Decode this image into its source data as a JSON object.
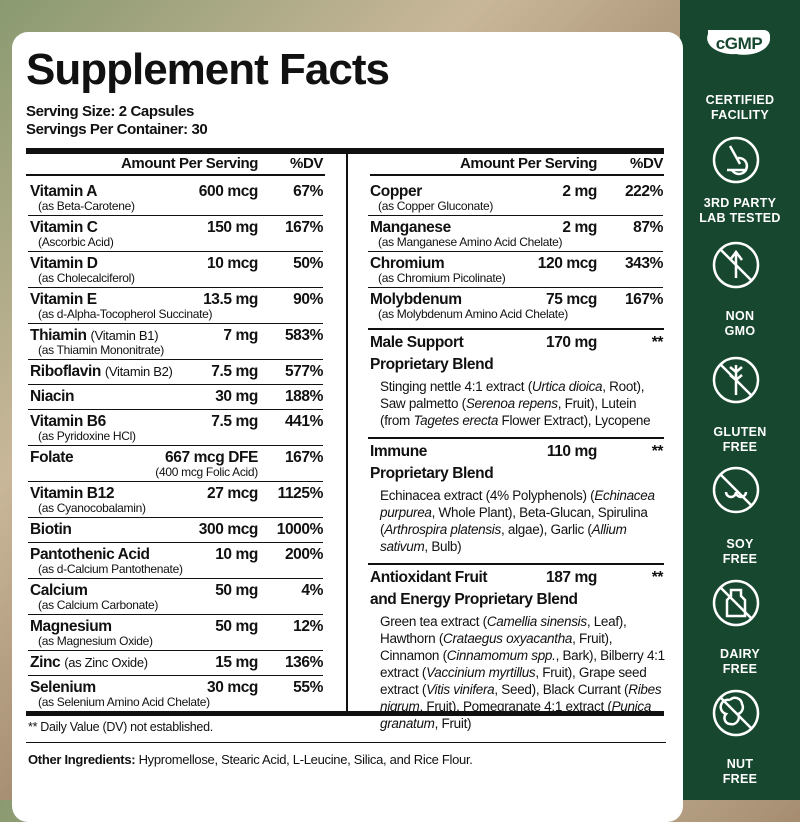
{
  "title": "Supplement Facts",
  "serving_size": "Serving Size: 2 Capsules",
  "servings_per_container": "Servings Per Container: 30",
  "table": {
    "header_amount": "Amount Per Serving",
    "header_dv": "%DV",
    "left_rows": [
      {
        "name": "Vitamin A",
        "sub": "(as Beta-Carotene)",
        "amount": "600 mcg",
        "dv": "67%"
      },
      {
        "name": "Vitamin C",
        "sub": "(Ascorbic Acid)",
        "amount": "150 mg",
        "dv": "167%"
      },
      {
        "name": "Vitamin D",
        "sub": "(as Cholecalciferol)",
        "amount": "10 mcg",
        "dv": "50%"
      },
      {
        "name": "Vitamin E",
        "sub": "(as d-Alpha-Tocopherol Succinate)",
        "amount": "13.5 mg",
        "dv": "90%"
      },
      {
        "name": "Thiamin",
        "note": "(Vitamin B1)",
        "sub": "(as Thiamin Mononitrate)",
        "amount": "7 mg",
        "dv": "583%"
      },
      {
        "name": "Riboflavin",
        "note": "(Vitamin B2)",
        "amount": "7.5 mg",
        "dv": "577%"
      },
      {
        "name": "Niacin",
        "amount": "30 mg",
        "dv": "188%"
      },
      {
        "name": "Vitamin B6",
        "sub": "(as Pyridoxine HCl)",
        "amount": "7.5 mg",
        "dv": "441%"
      },
      {
        "name": "Folate",
        "amount": "667 mcg DFE",
        "amount_sub": "(400 mcg Folic Acid)",
        "dv": "167%"
      },
      {
        "name": "Vitamin B12",
        "sub": "(as Cyanocobalamin)",
        "amount": "27 mcg",
        "dv": "1125%"
      },
      {
        "name": "Biotin",
        "amount": "300 mcg",
        "dv": "1000%"
      },
      {
        "name": "Pantothenic Acid",
        "sub": "(as d-Calcium Pantothenate)",
        "amount": "10 mg",
        "dv": "200%"
      },
      {
        "name": "Calcium",
        "sub": "(as Calcium Carbonate)",
        "amount": "50 mg",
        "dv": "4%"
      },
      {
        "name": "Magnesium",
        "sub": "(as Magnesium Oxide)",
        "amount": "50 mg",
        "dv": "12%"
      },
      {
        "name": "Zinc",
        "note": "(as Zinc Oxide)",
        "amount": "15 mg",
        "dv": "136%"
      },
      {
        "name": "Selenium",
        "sub": "(as Selenium Amino Acid Chelate)",
        "amount": "30 mcg",
        "dv": "55%"
      }
    ],
    "right_rows": [
      {
        "name": "Copper",
        "sub": "(as Copper Gluconate)",
        "amount": "2 mg",
        "dv": "222%"
      },
      {
        "name": "Manganese",
        "sub": "(as Manganese Amino Acid Chelate)",
        "amount": "2 mg",
        "dv": "87%"
      },
      {
        "name": "Chromium",
        "sub": "(as Chromium Picolinate)",
        "amount": "120 mcg",
        "dv": "343%"
      },
      {
        "name": "Molybdenum",
        "sub": "(as Molybdenum Amino Acid Chelate)",
        "amount": "75 mcg",
        "dv": "167%"
      }
    ],
    "blends": [
      {
        "name": "Male Support",
        "name2": "Proprietary Blend",
        "amount": "170 mg",
        "dv": "**",
        "description": [
          "Stinging nettle 4:1 extract (",
          "Urtica dioica",
          ", Root), Saw palmetto (",
          "Serenoa repens",
          ", Fruit), Lutein (from ",
          "Tagetes erecta",
          " Flower Extract), Lycopene"
        ]
      },
      {
        "name": "Immune",
        "name2": "Proprietary Blend",
        "amount": "110 mg",
        "dv": "**",
        "description": [
          "Echinacea extract (4% Polyphenols) (",
          "Echinacea purpurea",
          ", Whole Plant), Beta-Glucan, Spirulina (",
          "Arthrospira platensis",
          ", algae), Garlic (",
          "Allium sativum",
          ", Bulb)"
        ]
      },
      {
        "name": "Antioxidant Fruit",
        "name2": "and Energy Proprietary Blend",
        "amount": "187 mg",
        "dv": "**",
        "description": [
          "Green tea extract (",
          "Camellia sinensis",
          ", Leaf), Hawthorn (",
          "Crataegus oxyacantha",
          ", Fruit), Cinnamon (",
          "Cinnamomum spp.",
          ", Bark), Bilberry 4:1 extract (",
          "Vaccinium myrtillus",
          ", Fruit), Grape seed extract (",
          "Vitis vinifera",
          ", Seed), Black Currant (",
          "Ribes nigrum",
          ", Fruit), Pomegranate 4:1 extract (",
          "Punica granatum",
          ", Fruit)"
        ]
      }
    ]
  },
  "footnote": "** Daily Value (DV) not established.",
  "other_ingredients": {
    "label": "Other Ingredients:",
    "text": "Hypromellose, Stearic Acid, L-Leucine, Silica, and Rice Flour."
  },
  "badges": [
    {
      "logo": "cGMP",
      "lines": [
        "CERTIFIED",
        "FACILITY"
      ]
    },
    {
      "lines": [
        "3RD PARTY",
        "LAB TESTED"
      ]
    },
    {
      "lines": [
        "NON",
        "GMO"
      ]
    },
    {
      "lines": [
        "GLUTEN",
        "FREE"
      ]
    },
    {
      "lines": [
        "SOY",
        "FREE"
      ]
    },
    {
      "lines": [
        "DAIRY",
        "FREE"
      ]
    },
    {
      "lines": [
        "NUT",
        "FREE"
      ]
    }
  ]
}
